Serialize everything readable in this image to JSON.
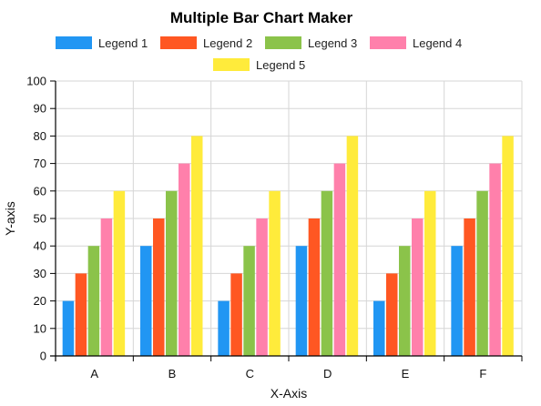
{
  "chart_data": {
    "type": "bar",
    "title": "Multiple Bar Chart Maker",
    "xlabel": "X-Axis",
    "ylabel": "Y-axis",
    "categories": [
      "A",
      "B",
      "C",
      "D",
      "E",
      "F"
    ],
    "ylim": [
      0,
      100
    ],
    "yticks": [
      0,
      10,
      20,
      30,
      40,
      50,
      60,
      70,
      80,
      90,
      100
    ],
    "grid": true,
    "legend_position": "top",
    "series": [
      {
        "name": "Legend 1",
        "color": "#2196F3",
        "values": [
          20,
          40,
          20,
          40,
          20,
          40
        ]
      },
      {
        "name": "Legend 2",
        "color": "#FF5722",
        "values": [
          30,
          50,
          30,
          50,
          30,
          50
        ]
      },
      {
        "name": "Legend 3",
        "color": "#8BC34A",
        "values": [
          40,
          60,
          40,
          60,
          40,
          60
        ]
      },
      {
        "name": "Legend 4",
        "color": "#FF80AB",
        "values": [
          50,
          70,
          50,
          70,
          50,
          70
        ]
      },
      {
        "name": "Legend 5",
        "color": "#FFEB3B",
        "values": [
          60,
          80,
          60,
          80,
          60,
          80
        ]
      }
    ]
  }
}
